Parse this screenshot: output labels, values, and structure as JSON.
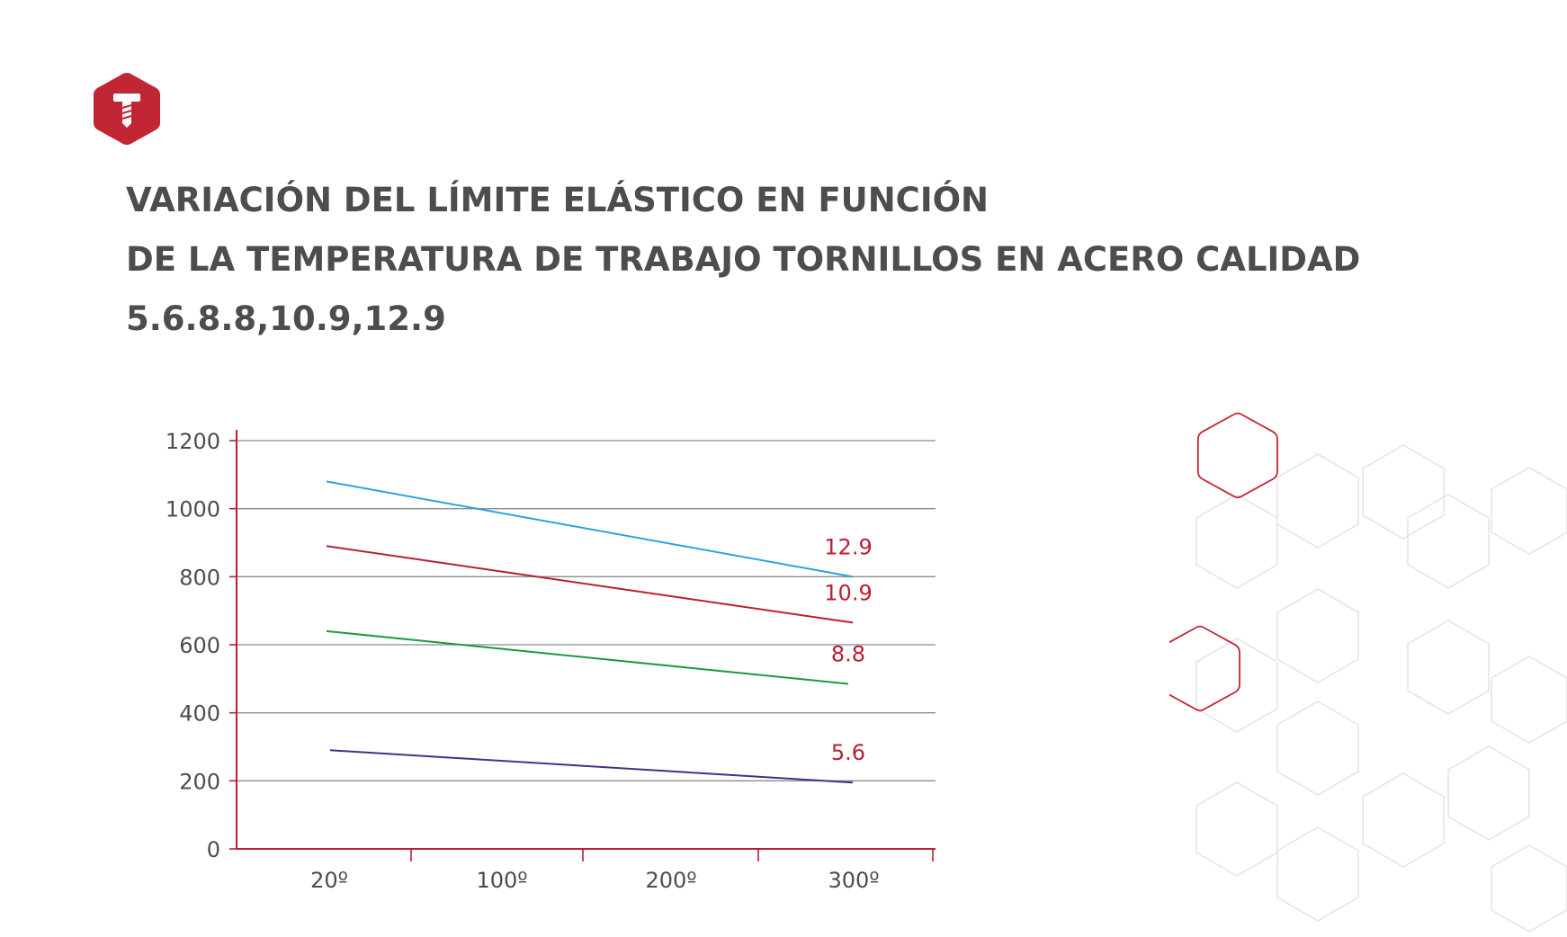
{
  "title": {
    "line1": "VARIACIÓN DEL LÍMITE ELÁSTICO EN FUNCIÓN",
    "line2": "DE LA TEMPERATURA DE TRABAJO TORNILLOS EN ACERO CALIDAD",
    "line3": "5.6.8.8,10.9,12.9"
  },
  "colors": {
    "brand": "#c12633",
    "axis": "#b81f32",
    "grid": "#8c8c8c",
    "text": "#4d4d4f"
  },
  "logo": {
    "icon": "bolt-hexagon-logo-icon"
  },
  "chart_data": {
    "type": "line",
    "x": [
      "20º",
      "100º",
      "200º",
      "300º"
    ],
    "ylim": [
      0,
      1200
    ],
    "yticks": [
      "0",
      "200",
      "400",
      "600",
      "800",
      "1000",
      "1200"
    ],
    "grid": true,
    "series": [
      {
        "name": "12.9",
        "color": "#29a3dc",
        "values": [
          1080,
          null,
          null,
          800
        ]
      },
      {
        "name": "10.9",
        "color": "#b81f32",
        "values": [
          890,
          null,
          null,
          665
        ]
      },
      {
        "name": "8.8",
        "color": "#1e9a3c",
        "values": [
          640,
          null,
          null,
          485
        ]
      },
      {
        "name": "5.6",
        "color": "#4b2e83",
        "values": [
          290,
          null,
          null,
          195
        ]
      }
    ]
  }
}
